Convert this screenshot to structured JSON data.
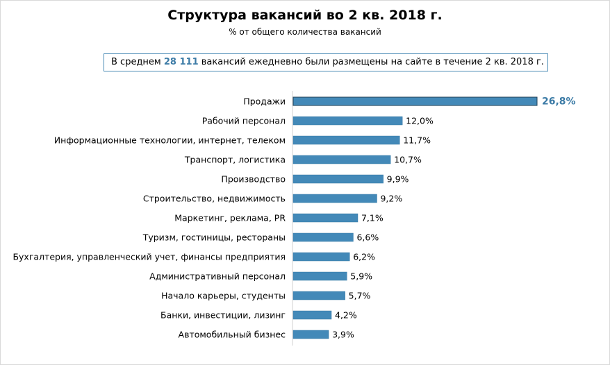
{
  "chart_data": {
    "type": "bar",
    "orientation": "horizontal",
    "title": "Структура вакансий во 2 кв. 2018 г.",
    "subtitle": "% от общего количества вакансий",
    "annotation": {
      "before": "В среднем ",
      "number": "28 111",
      "after": " вакансий ежедневно были размещены на сайте в течение 2 кв. 2018 г."
    },
    "categories": [
      "Продажи",
      "Рабочий персонал",
      "Информационные технологии, интернет, телеком",
      "Транспорт, логистика",
      "Производство",
      "Строительство, недвижимость",
      "Маркетинг, реклама, PR",
      "Туризм, гостиницы, рестораны",
      "Бухгалтерия, управленческий учет, финансы предприятия",
      "Административный персонал",
      "Начало карьеры, студенты",
      "Банки, инвестиции, лизинг",
      "Автомобильный бизнес"
    ],
    "values": [
      26.8,
      12.0,
      11.7,
      10.7,
      9.9,
      9.2,
      7.1,
      6.6,
      6.2,
      5.9,
      5.7,
      4.2,
      3.9
    ],
    "labels": [
      "26,8%",
      "12,0%",
      "11,7%",
      "10,7%",
      "9,9%",
      "9,2%",
      "7,1%",
      "6,6%",
      "6,2%",
      "5,9%",
      "5,7%",
      "4,2%",
      "3,9%"
    ],
    "bar_color": "#4389b8",
    "highlight_color": "#3c7ba6",
    "xlim": [
      0,
      26.8
    ]
  }
}
